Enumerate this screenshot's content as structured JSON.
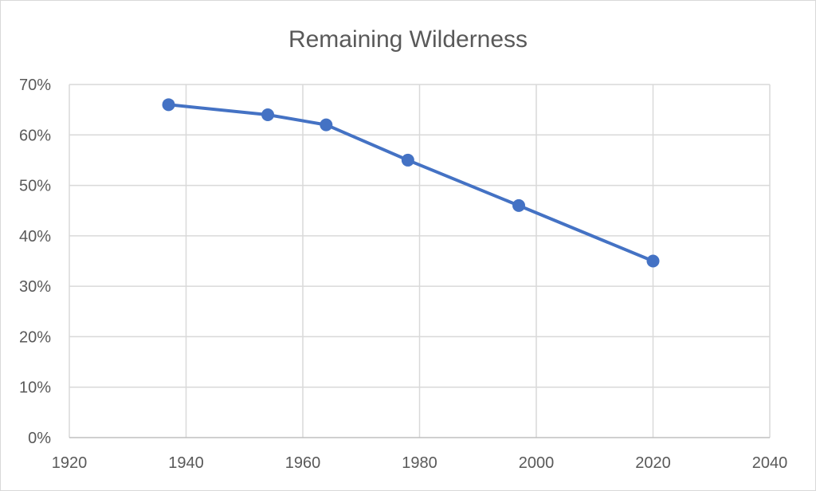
{
  "chart_data": {
    "type": "scatter",
    "title": "Remaining Wilderness",
    "xlabel": "",
    "ylabel": "",
    "x": [
      1937,
      1954,
      1964,
      1978,
      1997,
      2020
    ],
    "y": [
      0.66,
      0.64,
      0.62,
      0.55,
      0.46,
      0.35
    ],
    "xlim": [
      1920,
      2040
    ],
    "ylim": [
      0,
      0.7
    ],
    "x_ticks": [
      1920,
      1940,
      1960,
      1980,
      2000,
      2020,
      2040
    ],
    "y_ticks": [
      0,
      0.1,
      0.2,
      0.3,
      0.4,
      0.5,
      0.6,
      0.7
    ],
    "x_tick_labels": [
      "1920",
      "1940",
      "1960",
      "1980",
      "2000",
      "2020",
      "2040"
    ],
    "y_tick_labels": [
      "0%",
      "10%",
      "20%",
      "30%",
      "40%",
      "50%",
      "60%",
      "70%"
    ],
    "grid": true,
    "lines_connecting_points": true,
    "marker": "circle",
    "series_color": "#4472c4"
  }
}
